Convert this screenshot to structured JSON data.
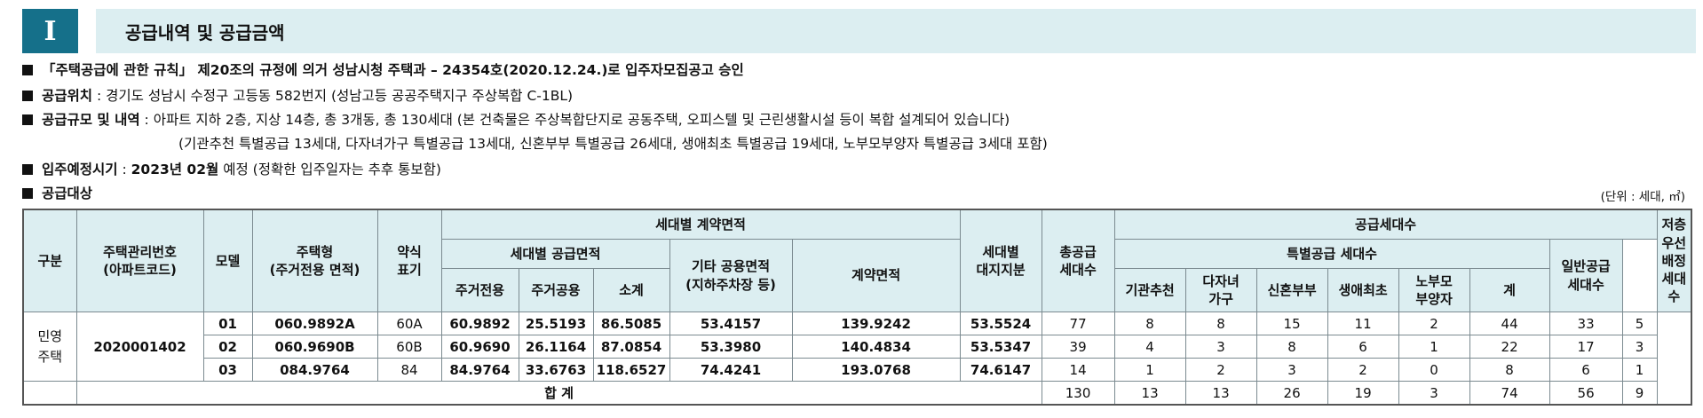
{
  "section": {
    "number": "I",
    "title": "공급내역 및 공급금액"
  },
  "approval": {
    "text": "「주택공급에 관한 규칙」 제20조의 규정에 의거 성남시청 주택과 – 24354호(2020.12.24.)로 입주자모집공고 승인"
  },
  "location": {
    "label": "공급위치",
    "value": " : 경기도 성남시 수정구 고등동 582번지 (성남고등 공공주택지구 주상복합 C-1BL)"
  },
  "scale": {
    "label": "공급규모 및 내역",
    "value": " : 아파트 지하 2층, 지상 14층, 총 3개동, 총 130세대 (본 건축물은 주상복합단지로 공동주택, 오피스텔 및 근린생활시설 등이 복합 설계되어 있습니다)",
    "detail": "(기관추천 특별공급 13세대, 다자녀가구 특별공급 13세대, 신혼부부 특별공급 26세대, 생애최초 특별공급 19세대, 노부모부양자 특별공급 3세대 포함)"
  },
  "move_in": {
    "label": "입주예정시기",
    "sep": " : ",
    "value": "2023년 02월",
    "note": " 예정 (정확한 입주일자는 추후 통보함)"
  },
  "target": {
    "label": "공급대상",
    "unit": "(단위 : 세대, ㎡)"
  },
  "table": {
    "h_division": "구분",
    "h_code": "주택관리번호\n(아파트코드)",
    "h_model": "모델",
    "h_type": "주택형\n(주거전용 면적)",
    "h_abbr": "약식\n표기",
    "h_contract_area": "세대별 계약면적",
    "h_supply_area": "세대별 공급면적",
    "h_exclusive": "주거전용",
    "h_common": "주거공용",
    "h_subtotal": "소계",
    "h_other_common": "기타 공용면적\n(지하주차장 등)",
    "h_contract": "계약면적",
    "h_land": "세대별\n대지지분",
    "h_total_units": "총공급\n세대수",
    "h_supply_units": "공급세대수",
    "h_special": "특별공급 세대수",
    "h_inst": "기관추천",
    "h_multi": "다자녀\n가구",
    "h_newly": "신혼부부",
    "h_first": "생애최초",
    "h_elder": "노부모\n부양자",
    "h_sum": "계",
    "h_general": "일반공급\n세대수",
    "h_low": "저층우선\n배정세대수",
    "division": "민영\n주택",
    "code": "2020001402",
    "rows": [
      {
        "model": "01",
        "type": "060.9892A",
        "abbr": "60A",
        "exclusive": "60.9892",
        "common": "25.5193",
        "subtotal": "86.5085",
        "other": "53.4157",
        "contract": "139.9242",
        "land": "53.5524",
        "total": "77",
        "inst": "8",
        "multi": "8",
        "newly": "15",
        "first": "11",
        "elder": "2",
        "sum": "44",
        "general": "33",
        "low": "5"
      },
      {
        "model": "02",
        "type": "060.9690B",
        "abbr": "60B",
        "exclusive": "60.9690",
        "common": "26.1164",
        "subtotal": "87.0854",
        "other": "53.3980",
        "contract": "140.4834",
        "land": "53.5347",
        "total": "39",
        "inst": "4",
        "multi": "3",
        "newly": "8",
        "first": "6",
        "elder": "1",
        "sum": "22",
        "general": "17",
        "low": "3"
      },
      {
        "model": "03",
        "type": "084.9764",
        "abbr": "84",
        "exclusive": "84.9764",
        "common": "33.6763",
        "subtotal": "118.6527",
        "other": "74.4241",
        "contract": "193.0768",
        "land": "74.6147",
        "total": "14",
        "inst": "1",
        "multi": "2",
        "newly": "3",
        "first": "2",
        "elder": "0",
        "sum": "8",
        "general": "6",
        "low": "1"
      }
    ],
    "total_row": {
      "label": "합 계",
      "total": "130",
      "inst": "13",
      "multi": "13",
      "newly": "26",
      "first": "19",
      "elder": "3",
      "sum": "74",
      "general": "56",
      "low": "9"
    }
  }
}
